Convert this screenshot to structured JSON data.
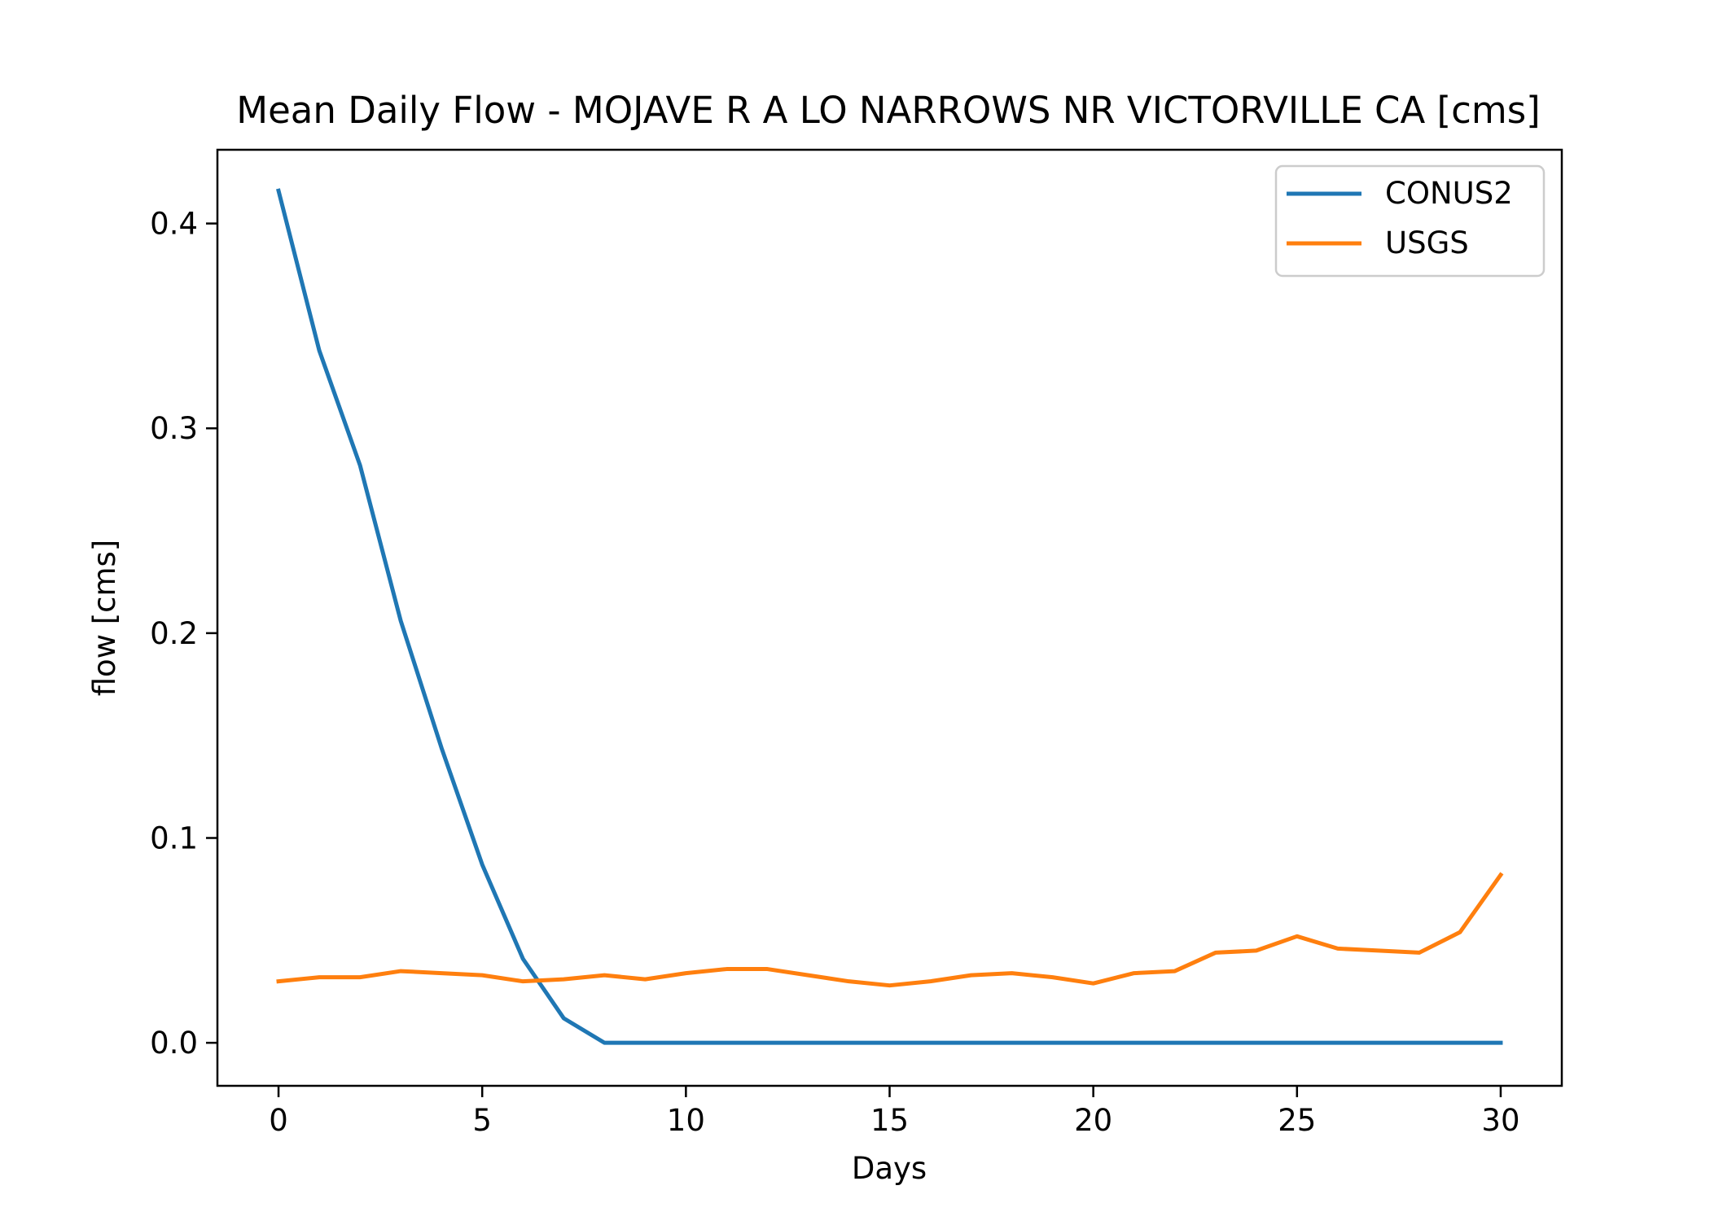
{
  "chart_data": {
    "type": "line",
    "title": "Mean Daily Flow - MOJAVE R A LO NARROWS NR VICTORVILLE CA [cms]",
    "xlabel": "Days",
    "ylabel": "flow [cms]",
    "xlim": [
      -1.5,
      31.5
    ],
    "ylim": [
      -0.021,
      0.436
    ],
    "xticks": [
      0,
      5,
      10,
      15,
      20,
      25,
      30
    ],
    "xtick_labels": [
      "0",
      "5",
      "10",
      "15",
      "20",
      "25",
      "30"
    ],
    "yticks": [
      0.0,
      0.1,
      0.2,
      0.3,
      0.4
    ],
    "ytick_labels": [
      "0.0",
      "0.1",
      "0.2",
      "0.3",
      "0.4"
    ],
    "grid": false,
    "legend_position": "top-right",
    "x": [
      0,
      1,
      2,
      3,
      4,
      5,
      6,
      7,
      8,
      9,
      10,
      11,
      12,
      13,
      14,
      15,
      16,
      17,
      18,
      19,
      20,
      21,
      22,
      23,
      24,
      25,
      26,
      27,
      28,
      29,
      30
    ],
    "series": [
      {
        "name": "CONUS2",
        "color": "#1f77b4",
        "values": [
          0.416,
          0.338,
          0.282,
          0.206,
          0.144,
          0.087,
          0.041,
          0.012,
          0.0,
          0.0,
          0.0,
          0.0,
          0.0,
          0.0,
          0.0,
          0.0,
          0.0,
          0.0,
          0.0,
          0.0,
          0.0,
          0.0,
          0.0,
          0.0,
          0.0,
          0.0,
          0.0,
          0.0,
          0.0,
          0.0,
          0.0
        ]
      },
      {
        "name": "USGS",
        "color": "#ff7f0e",
        "values": [
          0.03,
          0.032,
          0.032,
          0.035,
          0.034,
          0.033,
          0.03,
          0.031,
          0.033,
          0.031,
          0.034,
          0.036,
          0.036,
          0.033,
          0.03,
          0.028,
          0.03,
          0.033,
          0.034,
          0.032,
          0.029,
          0.034,
          0.035,
          0.044,
          0.045,
          0.052,
          0.046,
          0.045,
          0.044,
          0.054,
          0.082
        ]
      }
    ]
  }
}
